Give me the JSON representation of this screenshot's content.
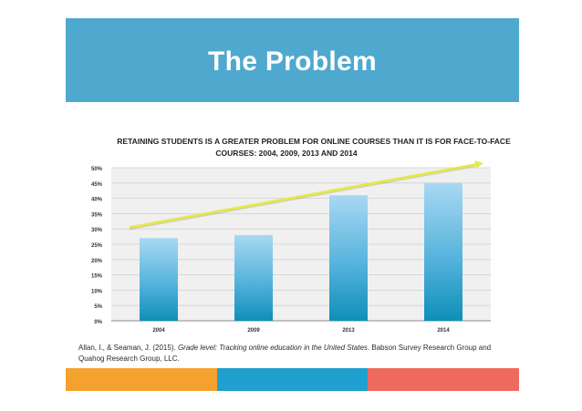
{
  "slide": {
    "title": "The Problem"
  },
  "chart_data": {
    "type": "bar",
    "title": "Retaining students is a greater problem for online courses than it is for face-to-face",
    "subtitle": "courses: 2004, 2009, 2013 and 2014",
    "categories": [
      "2004",
      "2009",
      "2013",
      "2014"
    ],
    "values": [
      27,
      28,
      41,
      45
    ],
    "ylim": [
      0,
      50
    ],
    "y_ticks": [
      "0%",
      "5%",
      "10%",
      "15%",
      "20%",
      "25%",
      "30%",
      "35%",
      "40%",
      "45%",
      "50%"
    ],
    "grid": true,
    "trend_arrow": {
      "from": 30.5,
      "to": 51.5
    },
    "colors": {
      "bar_top": "#a9d8f2",
      "bar_bottom": "#0e8fb9",
      "trend": "#e5e84a",
      "plot_bg": "#f0f0f0",
      "gridline": "#d0d0d0"
    }
  },
  "citation": {
    "authors": "Allan, I., & Seaman, J. (2015). ",
    "work": "Grade level: Tracking online education in the United States",
    "publisher": ". Babson Survey Research Group and Quahog Research Group, LLC."
  },
  "footer": {
    "colors": [
      "#f4a22d",
      "#1fa0cf",
      "#ef6a5e"
    ]
  }
}
